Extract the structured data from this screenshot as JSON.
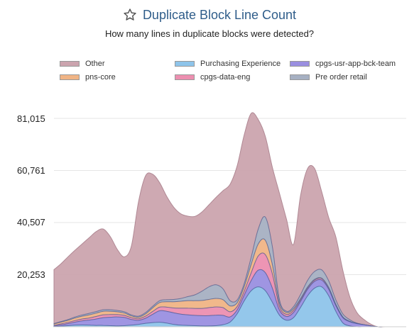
{
  "header": {
    "title": "Duplicate Block Line Count",
    "subtitle": "How many lines in duplicate blocks were detected?",
    "star_icon": "star-outline-icon"
  },
  "legend": [
    {
      "name": "Other",
      "color": "#cba4ae"
    },
    {
      "name": "Purchasing Experience",
      "color": "#8ec4ea"
    },
    {
      "name": "cpgs-usr-app-bck-team",
      "color": "#9a8fe0"
    },
    {
      "name": "pns-core",
      "color": "#f0b485"
    },
    {
      "name": "cpgs-data-eng",
      "color": "#ec8fb0"
    },
    {
      "name": "Pre order retail",
      "color": "#a6b0c2"
    }
  ],
  "chart_data": {
    "type": "area",
    "stacked": true,
    "y_ticks": [
      "20,253",
      "40,507",
      "60,761",
      "81,015"
    ],
    "ylim": [
      0,
      81015
    ],
    "grid": true,
    "legend_position": "top",
    "x": [
      0,
      1,
      2,
      3,
      4,
      5,
      6,
      7,
      8,
      9,
      10,
      11,
      12,
      13,
      14,
      15,
      16,
      17,
      18,
      19,
      20,
      21,
      22,
      23,
      24,
      25,
      26,
      27,
      28,
      29,
      30,
      31,
      32,
      33,
      34,
      35,
      36,
      37,
      38,
      39,
      40,
      41,
      42,
      43,
      44,
      45,
      46,
      47,
      48,
      49,
      50
    ],
    "series": [
      {
        "name": "Purchasing Experience",
        "color": "#8ec4ea",
        "values": [
          0,
          200,
          400,
          600,
          700,
          600,
          500,
          500,
          400,
          300,
          400,
          600,
          900,
          1300,
          1600,
          1700,
          1400,
          900,
          600,
          500,
          400,
          300,
          300,
          400,
          800,
          1800,
          5000,
          10000,
          14000,
          15500,
          14000,
          9500,
          4500,
          2500,
          3500,
          7500,
          12000,
          15000,
          15500,
          12000,
          6000,
          1500,
          300,
          0,
          0,
          0,
          0,
          0,
          0,
          0,
          0
        ]
      },
      {
        "name": "cpgs-usr-app-bck-team",
        "color": "#9a8fe0",
        "values": [
          200,
          500,
          800,
          1200,
          1600,
          2000,
          2500,
          3000,
          3300,
          3500,
          3200,
          2200,
          1600,
          2000,
          3200,
          4500,
          4600,
          4500,
          4300,
          4100,
          4000,
          4000,
          4000,
          4100,
          3600,
          2000,
          1500,
          2200,
          4000,
          6500,
          7000,
          5500,
          2000,
          1500,
          2000,
          2300,
          2500,
          2600,
          2600,
          2500,
          2200,
          2000,
          1600,
          1200,
          800,
          300,
          0,
          0,
          0,
          0,
          0
        ]
      },
      {
        "name": "cpgs-data-eng",
        "color": "#ec8fb0",
        "values": [
          300,
          400,
          500,
          600,
          700,
          800,
          1000,
          1100,
          1000,
          900,
          800,
          700,
          600,
          800,
          1100,
          1400,
          1600,
          1900,
          2300,
          2600,
          2700,
          2800,
          3100,
          3200,
          3000,
          2000,
          1300,
          1500,
          3000,
          5500,
          7000,
          5500,
          1400,
          800,
          800,
          600,
          500,
          500,
          500,
          400,
          300,
          200,
          100,
          0,
          0,
          0,
          0,
          0,
          0,
          0,
          0
        ]
      },
      {
        "name": "pns-core",
        "color": "#f0b485",
        "values": [
          600,
          700,
          800,
          1000,
          1100,
          1200,
          1300,
          1400,
          1300,
          1100,
          900,
          700,
          600,
          900,
          1400,
          1800,
          2100,
          2400,
          2700,
          2900,
          3000,
          3100,
          3200,
          3300,
          3100,
          2300,
          1500,
          1800,
          3300,
          4700,
          5600,
          3600,
          1300,
          700,
          700,
          500,
          400,
          300,
          300,
          300,
          200,
          100,
          100,
          0,
          0,
          0,
          0,
          0,
          0,
          0,
          0
        ]
      },
      {
        "name": "Pre order retail",
        "color": "#a6b0c2",
        "values": [
          100,
          200,
          300,
          400,
          500,
          600,
          600,
          600,
          600,
          500,
          500,
          400,
          400,
          500,
          600,
          700,
          800,
          900,
          1100,
          1600,
          2300,
          3600,
          4900,
          5300,
          4200,
          2000,
          1100,
          1200,
          2800,
          5800,
          9000,
          7000,
          1400,
          500,
          800,
          1600,
          2600,
          3100,
          3200,
          2600,
          1800,
          1200,
          600,
          200,
          0,
          0,
          0,
          0,
          0,
          0,
          0
        ]
      },
      {
        "name": "Other",
        "color": "#cba4ae",
        "values": [
          21000,
          22500,
          24400,
          26000,
          27600,
          29400,
          31100,
          31400,
          28400,
          23700,
          21400,
          26900,
          44400,
          53200,
          51400,
          45900,
          40200,
          35900,
          32900,
          31300,
          30500,
          30800,
          31900,
          34000,
          38200,
          45300,
          52100,
          57800,
          55900,
          42500,
          31400,
          30900,
          41400,
          35800,
          24200,
          38500,
          43500,
          40000,
          30400,
          24600,
          24500,
          17000,
          8900,
          4100,
          2000,
          700,
          0,
          0,
          0,
          0,
          0
        ]
      }
    ]
  }
}
